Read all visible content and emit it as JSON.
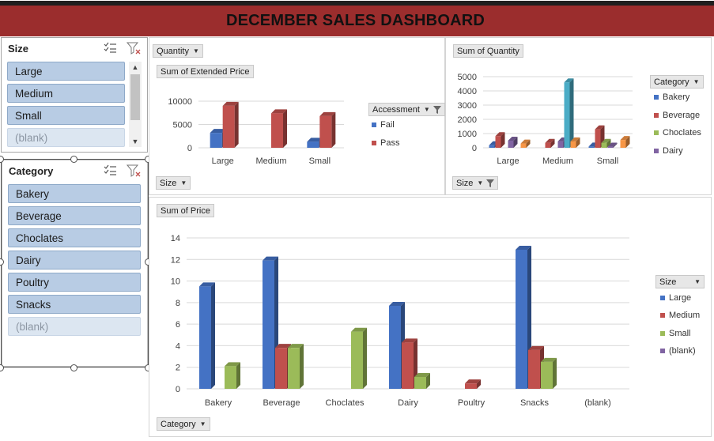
{
  "dashboard": {
    "title": "DECEMBER SALES DASHBOARD"
  },
  "slicer_size": {
    "title": "Size",
    "items": [
      {
        "label": "Large",
        "empty": false
      },
      {
        "label": "Medium",
        "empty": false
      },
      {
        "label": "Small",
        "empty": false
      },
      {
        "label": "(blank)",
        "empty": true
      }
    ]
  },
  "slicer_category": {
    "title": "Category",
    "items": [
      {
        "label": "Bakery",
        "empty": false
      },
      {
        "label": "Beverage",
        "empty": false
      },
      {
        "label": "Choclates",
        "empty": false
      },
      {
        "label": "Dairy",
        "empty": false
      },
      {
        "label": "Poultry",
        "empty": false
      },
      {
        "label": "Snacks",
        "empty": false
      },
      {
        "label": "(blank)",
        "empty": true
      }
    ]
  },
  "icons": {
    "multiselect": "multi-select-icon",
    "clear_filter": "clear-filter-icon"
  },
  "colors": {
    "title_bar": "#9b2d2d",
    "blue": "#4472c4",
    "red": "#c0504d",
    "green": "#9bbb59",
    "purple": "#8064a2",
    "cyan": "#4bacc6",
    "orange": "#f79646",
    "slicer_item": "#b8cce4"
  },
  "chart1": {
    "field_top": "Quantity",
    "field_bottom": "Size",
    "value_label": "Sum of Extended Price",
    "legend_title": "Accessment",
    "chart_data": {
      "type": "bar",
      "title": "",
      "categories": [
        "Large",
        "Medium",
        "Small"
      ],
      "ylim": [
        0,
        10000
      ],
      "yticks": [
        "10000",
        "5000",
        "0"
      ],
      "series": [
        {
          "name": "Fail",
          "color": "#4472c4",
          "values": [
            3200,
            0,
            1300
          ]
        },
        {
          "name": "Pass",
          "color": "#c0504d",
          "values": [
            9000,
            7400,
            6800
          ]
        }
      ]
    }
  },
  "chart2": {
    "field_bottom": "Size",
    "value_label": "Sum of Quantity",
    "legend_title": "Category",
    "chart_data": {
      "type": "bar",
      "title": "",
      "categories": [
        "Large",
        "Medium",
        "Small"
      ],
      "ylim": [
        0,
        5000
      ],
      "yticks": [
        "5000",
        "4000",
        "3000",
        "2000",
        "1000",
        "0"
      ],
      "series": [
        {
          "name": "Bakery",
          "color": "#4472c4",
          "values": [
            180,
            0,
            90
          ]
        },
        {
          "name": "Beverage",
          "color": "#c0504d",
          "values": [
            820,
            350,
            1300
          ]
        },
        {
          "name": "Choclates",
          "color": "#9bbb59",
          "values": [
            0,
            0,
            350
          ]
        },
        {
          "name": "Dairy",
          "color": "#8064a2",
          "values": [
            500,
            450,
            80
          ]
        },
        {
          "name": "",
          "color": "#4bacc6",
          "values": [
            0,
            4600,
            0
          ]
        },
        {
          "name": "",
          "color": "#f79646",
          "values": [
            300,
            450,
            550
          ]
        }
      ]
    }
  },
  "chart3": {
    "field_bottom": "Category",
    "value_label": "Sum of Price",
    "legend_title": "Size",
    "chart_data": {
      "type": "bar",
      "title": "",
      "categories": [
        "Bakery",
        "Beverage",
        "Choclates",
        "Dairy",
        "Poultry",
        "Snacks",
        "(blank)"
      ],
      "ylim": [
        0,
        14
      ],
      "yticks": [
        "14",
        "12",
        "10",
        "8",
        "6",
        "4",
        "2",
        "0"
      ],
      "series": [
        {
          "name": "Large",
          "color": "#4472c4",
          "values": [
            9.5,
            11.9,
            0,
            7.7,
            0,
            12.9,
            0
          ]
        },
        {
          "name": "Medium",
          "color": "#c0504d",
          "values": [
            0,
            3.8,
            0,
            4.3,
            0.5,
            3.6,
            0
          ]
        },
        {
          "name": "Small",
          "color": "#9bbb59",
          "values": [
            2.1,
            3.8,
            5.3,
            1.1,
            0,
            2.5,
            0
          ]
        },
        {
          "name": "(blank)",
          "color": "#8064a2",
          "values": [
            0,
            0,
            0,
            0,
            0,
            0,
            0
          ]
        }
      ]
    }
  }
}
